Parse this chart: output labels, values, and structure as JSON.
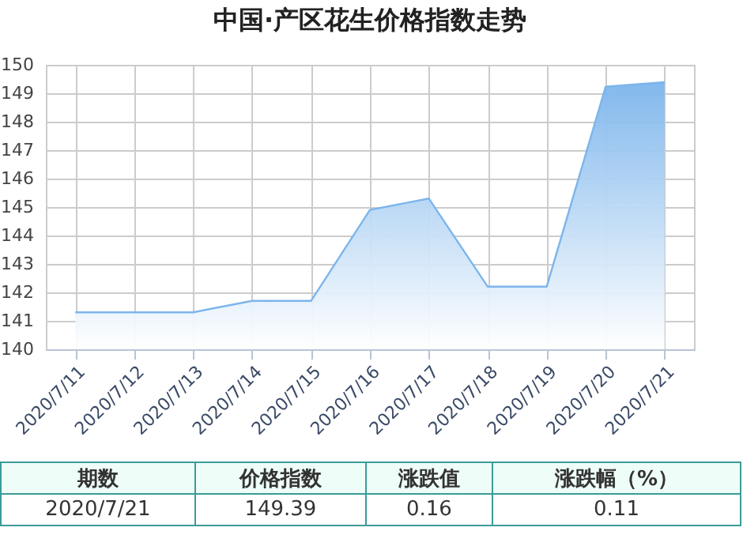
{
  "chart_data": [
    {
      "type": "area",
      "title": "中国·产区花生价格指数走势",
      "categories": [
        "2020/7/11",
        "2020/7/12",
        "2020/7/13",
        "2020/7/14",
        "2020/7/15",
        "2020/7/16",
        "2020/7/17",
        "2020/7/18",
        "2020/7/19",
        "2020/7/20",
        "2020/7/21"
      ],
      "series": [
        {
          "color": "#7cb5ec",
          "values": [
            141.3,
            141.3,
            141.3,
            141.7,
            141.7,
            144.9,
            145.3,
            142.2,
            142.2,
            149.23,
            149.39
          ]
        }
      ],
      "ylim": [
        140,
        150
      ],
      "yticks": [
        140,
        141,
        142,
        143,
        144,
        145,
        146,
        147,
        148,
        149,
        150
      ],
      "grid": true
    },
    {
      "type": "other",
      "annotations": [
        "期数",
        "价格指数",
        "涨跌值",
        "涨跌幅（%）",
        "2020/7/21",
        "149.39",
        "0.16",
        "0.11"
      ]
    }
  ]
}
